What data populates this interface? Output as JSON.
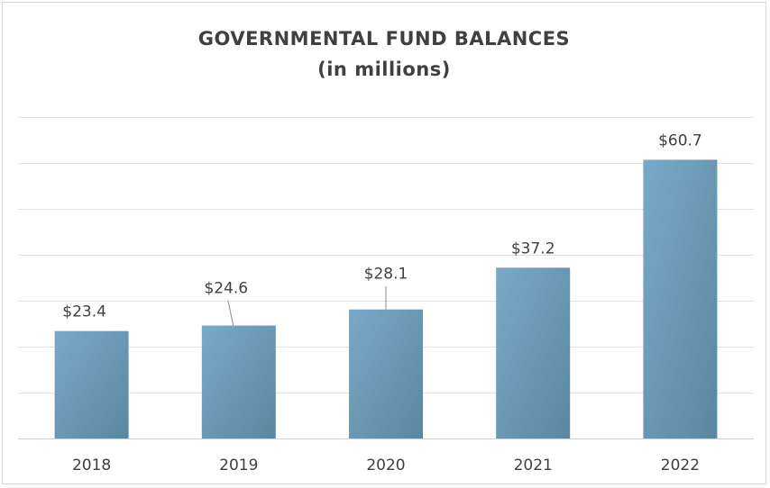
{
  "chart_data": {
    "type": "bar",
    "title": "GOVERNMENTAL FUND BALANCES",
    "subtitle": "(in millions)",
    "categories": [
      "2018",
      "2019",
      "2020",
      "2021",
      "2022"
    ],
    "values": [
      23.4,
      24.6,
      28.1,
      37.2,
      60.7
    ],
    "data_labels": [
      "$23.4",
      "$24.6",
      "$28.1",
      "$37.2",
      "$60.7"
    ],
    "ylim": [
      0,
      70
    ],
    "grid": true,
    "legend": false,
    "bar_color": "#6f9fbe",
    "bar_color_dark": "#4f7f99"
  }
}
